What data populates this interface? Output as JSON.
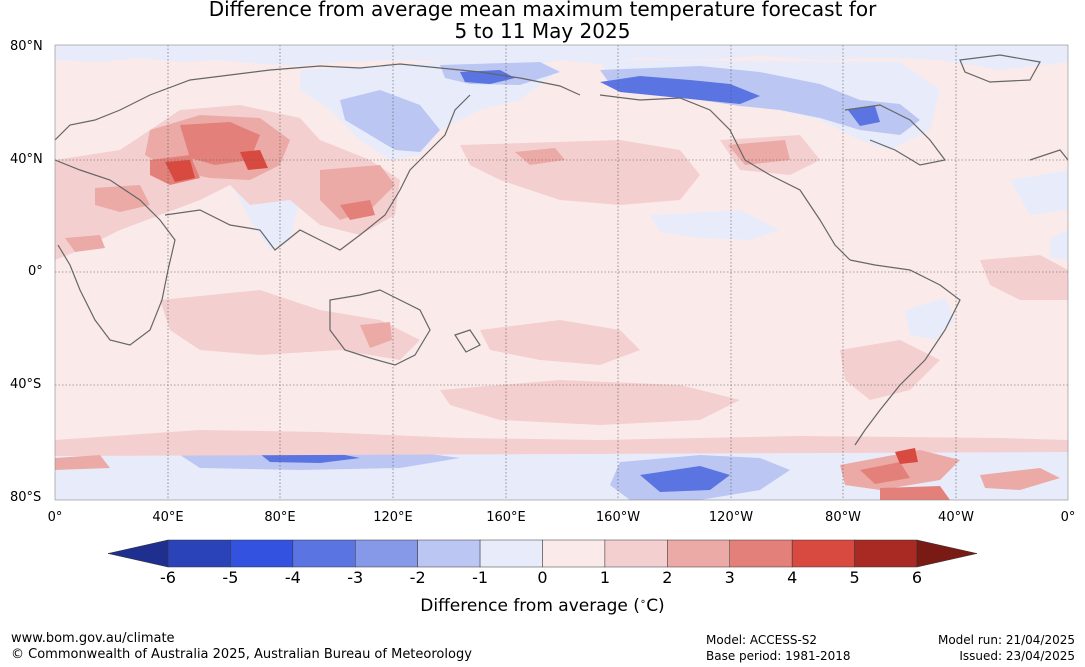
{
  "title_line1": "Difference from average mean maximum temperature forecast for",
  "title_line2": "5 to 11 May 2025",
  "latitude_labels": [
    "80°N",
    "40°N",
    "0°",
    "40°S",
    "80°S"
  ],
  "longitude_labels": [
    "0°",
    "40°E",
    "80°E",
    "120°E",
    "160°E",
    "160°W",
    "120°W",
    "80°W",
    "40°W",
    "0°"
  ],
  "colorbar": {
    "ticks": [
      "-6",
      "-5",
      "-4",
      "-3",
      "-2",
      "-1",
      "0",
      "1",
      "2",
      "3",
      "4",
      "5",
      "6"
    ],
    "colors": [
      "#1f2f8f",
      "#2b43b8",
      "#3352e0",
      "#5a74e2",
      "#8698e8",
      "#bcc6f2",
      "#e8ecfa",
      "#fbeaea",
      "#f4cfcf",
      "#ebaaa6",
      "#e3807a",
      "#d84a40",
      "#a92a22",
      "#7a1a15"
    ],
    "label": "Difference from average (",
    "unit": "C)"
  },
  "footer": {
    "website": "www.bom.gov.au/climate",
    "copyright": "© Commonwealth of Australia 2025, Australian Bureau of Meteorology",
    "model": "Model: ACCESS-S2",
    "base_period": "Base period: 1981-2018",
    "model_run": "Model run: 21/04/2025",
    "issued": "Issued: 23/04/2025"
  },
  "map_colors": {
    "background": "#fbeaea",
    "cool_light": "#e8ecfa",
    "cool_mid": "#bcc6f2",
    "cool_strong": "#5a74e2",
    "warm_light": "#f4cfcf",
    "warm_mid": "#ebaaa6",
    "warm_strong": "#e3807a",
    "warm_hot": "#d84a40",
    "coast": "#666666",
    "grid": "#555555"
  }
}
